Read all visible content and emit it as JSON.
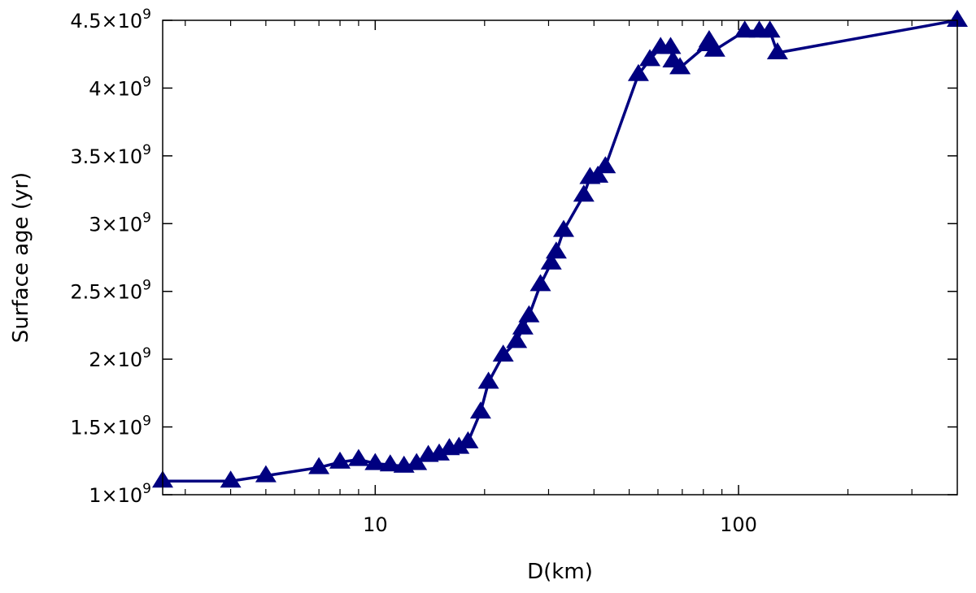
{
  "chart_data": {
    "type": "line",
    "xlabel": "D(km)",
    "ylabel": "Surface age (yr)",
    "xscale": "log",
    "xlim": [
      2.6,
      400
    ],
    "ylim": [
      1000000000,
      4500000000
    ],
    "grid": false,
    "legend": "none",
    "x_ticks": [
      {
        "value": 10,
        "label": "10"
      },
      {
        "value": 100,
        "label": "100"
      }
    ],
    "x_minor_ticks": [
      3,
      4,
      5,
      6,
      7,
      8,
      9,
      20,
      30,
      40,
      50,
      60,
      70,
      80,
      90,
      200,
      300,
      400
    ],
    "y_ticks": [
      {
        "value": 1000000000,
        "label": "1×10",
        "exp": "9"
      },
      {
        "value": 1500000000,
        "label": "1.5×10",
        "exp": "9"
      },
      {
        "value": 2000000000,
        "label": "2×10",
        "exp": "9"
      },
      {
        "value": 2500000000,
        "label": "2.5×10",
        "exp": "9"
      },
      {
        "value": 3000000000,
        "label": "3×10",
        "exp": "9"
      },
      {
        "value": 3500000000,
        "label": "3.5×10",
        "exp": "9"
      },
      {
        "value": 4000000000,
        "label": "4×10",
        "exp": "9"
      },
      {
        "value": 4500000000,
        "label": "4.5×10",
        "exp": "9"
      }
    ],
    "series": [
      {
        "color": "#000080",
        "marker": "triangle",
        "points": [
          [
            2.6,
            1100000000
          ],
          [
            4.0,
            1100000000
          ],
          [
            5.0,
            1140000000
          ],
          [
            7.0,
            1200000000
          ],
          [
            8.0,
            1240000000
          ],
          [
            9.0,
            1260000000
          ],
          [
            10.0,
            1230000000
          ],
          [
            11.0,
            1220000000
          ],
          [
            12.0,
            1210000000
          ],
          [
            13.0,
            1230000000
          ],
          [
            14.0,
            1290000000
          ],
          [
            15.0,
            1300000000
          ],
          [
            16.0,
            1340000000
          ],
          [
            17.0,
            1350000000
          ],
          [
            18.0,
            1390000000
          ],
          [
            19.5,
            1610000000
          ],
          [
            20.5,
            1830000000
          ],
          [
            22.5,
            2030000000
          ],
          [
            24.5,
            2130000000
          ],
          [
            25.5,
            2230000000
          ],
          [
            26.5,
            2320000000
          ],
          [
            28.5,
            2550000000
          ],
          [
            30.5,
            2710000000
          ],
          [
            31.5,
            2790000000
          ],
          [
            33.0,
            2950000000
          ],
          [
            37.5,
            3210000000
          ],
          [
            39.0,
            3340000000
          ],
          [
            41.0,
            3350000000
          ],
          [
            43.0,
            3420000000
          ],
          [
            53.0,
            4100000000
          ],
          [
            57.0,
            4210000000
          ],
          [
            61.0,
            4300000000
          ],
          [
            65.0,
            4300000000
          ],
          [
            66.0,
            4200000000
          ],
          [
            69.0,
            4150000000
          ],
          [
            82.0,
            4320000000
          ],
          [
            83.0,
            4350000000
          ],
          [
            86.0,
            4280000000
          ],
          [
            104.0,
            4420000000
          ],
          [
            114.0,
            4420000000
          ],
          [
            122.0,
            4420000000
          ],
          [
            128.0,
            4260000000
          ],
          [
            400.0,
            4500000000
          ]
        ]
      }
    ]
  }
}
